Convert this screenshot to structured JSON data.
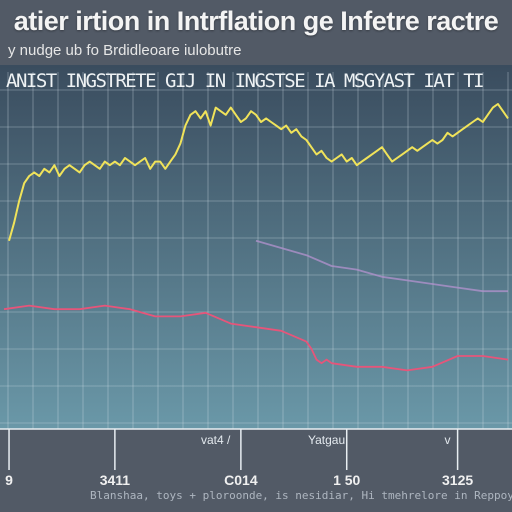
{
  "colors": {
    "background": "#525a66",
    "plot_top": "#3a4c5e",
    "plot_bottom": "#6a98a8",
    "grid": "#d8e3ea",
    "axis_text": "#f0f0f0"
  },
  "chart_data": {
    "type": "line",
    "title": "atier irtion in Intrflation ge Infetre ractre",
    "subtitle": "y nudge ub fo Brdidleoare iulobutre",
    "header_band": "ANIST INGSTRETE GIJ IN INGSTSE IA MSGYAST IAT TI",
    "ylim": [
      0,
      100
    ],
    "xlim": [
      0,
      100
    ],
    "grid": true,
    "legend": "none",
    "x_tick_labels": [
      {
        "x": 1,
        "label": "9"
      },
      {
        "x": 22,
        "label": "3411"
      },
      {
        "x": 47,
        "label": "C014"
      },
      {
        "x": 68,
        "label": "1 50"
      },
      {
        "x": 90,
        "label": "3125"
      }
    ],
    "inplot_labels": [
      {
        "x": 42,
        "label": "vat4 /"
      },
      {
        "x": 64,
        "label": "Yatgau"
      },
      {
        "x": 88,
        "label": "v"
      }
    ],
    "footer_text": "Blanshaa, toys + ploroonde, is nesidiar, Hi tmehrelore in Reppoy",
    "series": [
      {
        "color": "#f0e35a",
        "x": [
          1,
          2,
          3,
          4,
          5,
          6,
          7,
          8,
          9,
          10,
          11,
          12,
          13,
          14,
          15,
          16,
          17,
          18,
          19,
          20,
          21,
          22,
          23,
          24,
          25,
          26,
          27,
          28,
          29,
          30,
          31,
          32,
          33,
          34,
          35,
          36,
          37,
          38,
          39,
          40,
          41,
          42,
          43,
          44,
          45,
          46,
          47,
          48,
          49,
          50,
          51,
          52,
          53,
          54,
          55,
          56,
          57,
          58,
          59,
          60,
          61,
          62,
          63,
          64,
          65,
          66,
          67,
          68,
          69,
          70,
          71,
          72,
          73,
          74,
          75,
          76,
          77,
          78,
          79,
          80,
          81,
          82,
          83,
          84,
          85,
          86,
          87,
          88,
          89,
          90,
          91,
          92,
          93,
          94,
          95,
          96,
          97,
          98,
          99,
          100
        ],
        "values": [
          52,
          57,
          63,
          68,
          70,
          71,
          70,
          72,
          71,
          73,
          70,
          72,
          73,
          72,
          71,
          73,
          74,
          73,
          72,
          74,
          73,
          74,
          73,
          75,
          74,
          73,
          74,
          75,
          72,
          74,
          74,
          72,
          74,
          76,
          79,
          84,
          87,
          88,
          86,
          88,
          84,
          89,
          88,
          87,
          89,
          87,
          85,
          86,
          88,
          87,
          85,
          86,
          85,
          84,
          83,
          84,
          82,
          83,
          81,
          80,
          78,
          76,
          77,
          75,
          74,
          75,
          76,
          74,
          75,
          73,
          74,
          75,
          76,
          77,
          78,
          76,
          74,
          75,
          76,
          77,
          78,
          77,
          78,
          79,
          80,
          79,
          80,
          82,
          81,
          82,
          83,
          84,
          85,
          86,
          85,
          87,
          89,
          90,
          88,
          86
        ]
      },
      {
        "color": "#b493cf",
        "x": [
          50,
          55,
          60,
          65,
          70,
          75,
          80,
          85,
          90,
          95,
          100
        ],
        "values": [
          52,
          50,
          48,
          45,
          44,
          42,
          41,
          40,
          39,
          38,
          38
        ]
      },
      {
        "color": "#e6557a",
        "x": [
          0,
          5,
          10,
          15,
          20,
          25,
          30,
          35,
          40,
          45,
          50,
          55,
          60,
          61,
          62,
          63,
          64,
          65,
          70,
          75,
          80,
          85,
          90,
          95,
          100
        ],
        "values": [
          33,
          34,
          33,
          33,
          34,
          33,
          31,
          31,
          32,
          29,
          28,
          27,
          24,
          22,
          19,
          18,
          19,
          18,
          17,
          17,
          16,
          17,
          20,
          20,
          19
        ]
      }
    ]
  }
}
